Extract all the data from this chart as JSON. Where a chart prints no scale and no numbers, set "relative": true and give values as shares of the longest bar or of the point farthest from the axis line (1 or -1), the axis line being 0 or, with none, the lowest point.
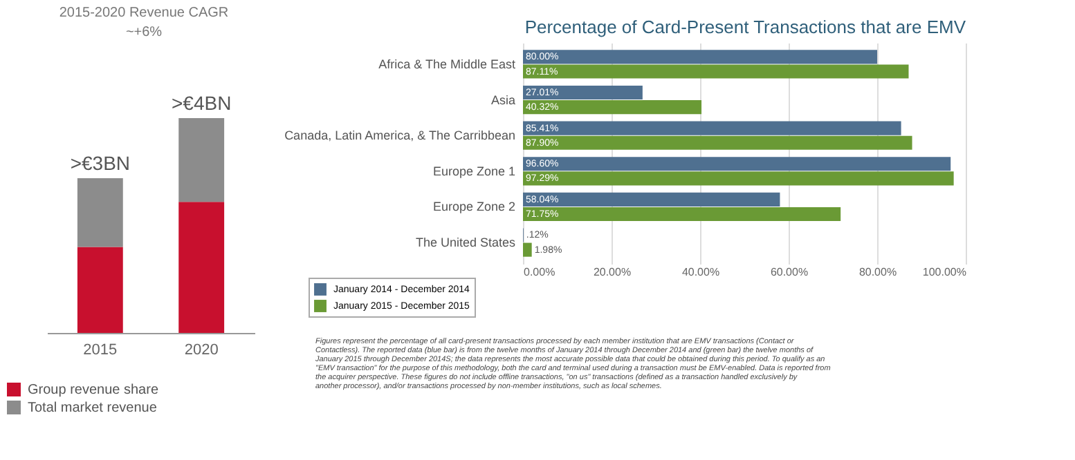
{
  "chart_data": [
    {
      "type": "bar",
      "stacked": true,
      "relative": true,
      "categories": [
        "2015",
        "2020"
      ],
      "series": [
        {
          "name": "Group revenue share",
          "color": "#c8102e",
          "values": [
            0.4,
            0.61
          ]
        },
        {
          "name": "Total market revenue",
          "color": "#8c8c8c",
          "values": [
            0.32,
            0.39
          ]
        }
      ],
      "totals": [
        ">€3BN",
        ">€4BN"
      ],
      "annotations": [
        "2015-2020 Revenue CAGR",
        "~+6%"
      ],
      "legend": "bottom left"
    },
    {
      "type": "bar",
      "orientation": "horizontal",
      "title": "Percentage of Card-Present Transactions that are EMV",
      "categories": [
        "Africa & The Middle East",
        "Asia",
        "Canada, Latin America, & The Carribbean",
        "Europe Zone 1",
        "Europe Zone 2",
        "The United States"
      ],
      "series": [
        {
          "name": "January 2014 - December 2014",
          "color": "#4f7090",
          "values": [
            80.0,
            27.01,
            85.41,
            96.6,
            58.04,
            0.12
          ],
          "value_labels": [
            "80.00%",
            "27.01%",
            "85.41%",
            "96.60%",
            "58.04%",
            ".12%"
          ]
        },
        {
          "name": "January 2015 - December 2015",
          "color": "#6a9a35",
          "values": [
            87.11,
            40.32,
            87.9,
            97.29,
            71.75,
            1.98
          ],
          "value_labels": [
            "87.11%",
            "40.32%",
            "87.90%",
            "97.29%",
            "71.75%",
            "1.98%"
          ]
        }
      ],
      "xlim": [
        0,
        100
      ],
      "xticks": [
        {
          "value": 0,
          "label": "0.00%"
        },
        {
          "value": 20,
          "label": "20.00%"
        },
        {
          "value": 40,
          "label": "40.00%"
        },
        {
          "value": 60,
          "label": "60.00%"
        },
        {
          "value": 80,
          "label": "80.00%"
        },
        {
          "value": 100,
          "label": "100.00%"
        }
      ],
      "grid": "x",
      "legend": "bottom left",
      "annotations": [
        "Figures represent the percentage of all card-present transactions processed by each member institution that are EMV transactions (Contact or Contactless). The reported data (blue bar) is from the twelve months of January 2014 through December 2014 and (green bar) the twelve months of January 2015 through December 2014S; the data represents the most accurate possible data that could be obtained during this period. To qualify as an \"EMV transaction\" for the purpose of this methodology, both the card and terminal used during a transaction must be EMV-enabled. Data is reported from the acquirer perspective. These figures do not include offline transactions, \"on us\" transactions (defined as a transaction handled exclusively by another processor), and/or transactions processed by non-member institutions, such as local schemes."
      ]
    }
  ]
}
